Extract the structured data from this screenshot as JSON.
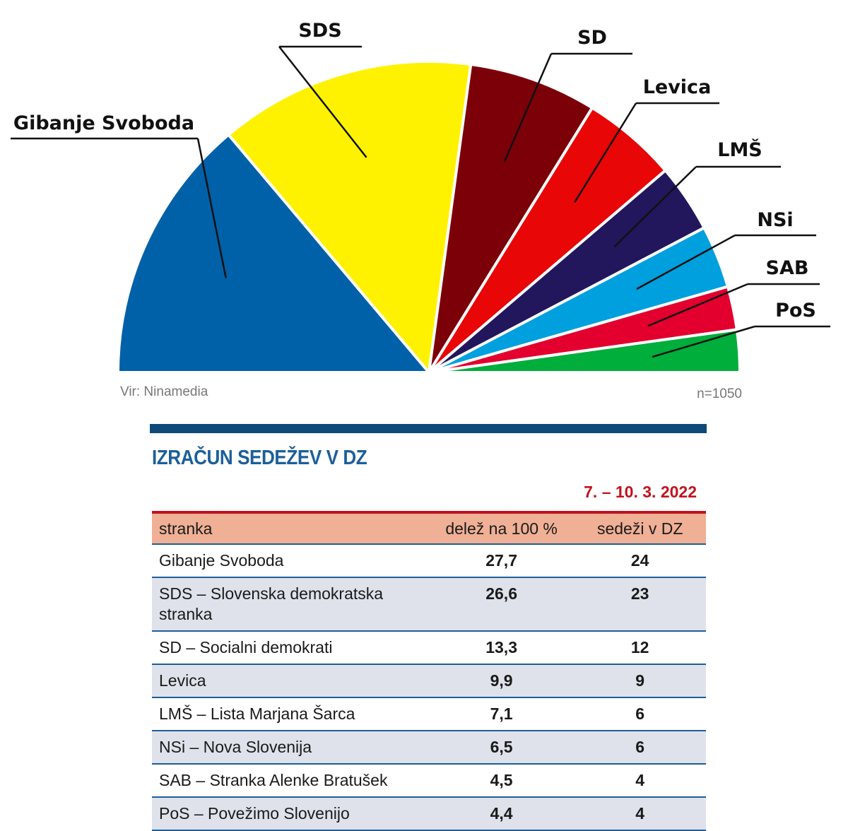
{
  "chart_data": {
    "type": "pie",
    "variant": "half-donut (parliament semicircle)",
    "labels": [
      "Gibanje Svoboda",
      "SDS",
      "SD",
      "Levica",
      "LMŠ",
      "NSi",
      "SAB",
      "PoS"
    ],
    "values": [
      27.7,
      26.6,
      13.3,
      9.9,
      7.1,
      6.5,
      4.5,
      4.4
    ],
    "colors": [
      "#0061a8",
      "#fff200",
      "#7b0008",
      "#e80606",
      "#22175c",
      "#00a0df",
      "#e3002e",
      "#00ae3b"
    ],
    "source": "Vir: Ninamedia",
    "sample": "n=1050"
  },
  "section": {
    "title": "IZRAČUN SEDEŽEV V DZ",
    "date": "7. – 10. 3. 2022"
  },
  "table": {
    "headers": {
      "party": "stranka",
      "share": "delež na 100 %",
      "seats": "sedeži v DZ"
    },
    "rows": [
      {
        "party": "Gibanje Svoboda",
        "share": "27,7",
        "seats": "24"
      },
      {
        "party": "SDS – Slovenska demokratska stranka",
        "share": "26,6",
        "seats": "23"
      },
      {
        "party": "SD – Socialni demokrati",
        "share": "13,3",
        "seats": "12"
      },
      {
        "party": "Levica",
        "share": "9,9",
        "seats": "9"
      },
      {
        "party": "LMŠ – Lista Marjana Šarca",
        "share": "7,1",
        "seats": "6"
      },
      {
        "party": "NSi – Nova Slovenija",
        "share": "6,5",
        "seats": "6"
      },
      {
        "party": "SAB – Stranka Alenke Bratušek",
        "share": "4,5",
        "seats": "4"
      },
      {
        "party": "PoS – Povežimo Slovenijo",
        "share": "4,4",
        "seats": "4"
      }
    ]
  }
}
